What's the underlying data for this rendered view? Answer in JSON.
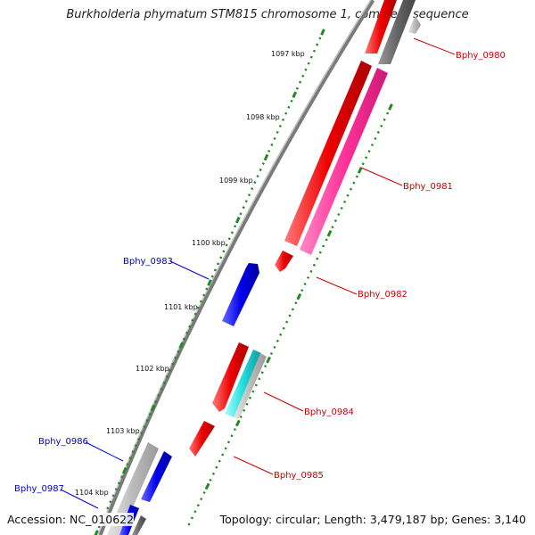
{
  "title": "Burkholderia phymatum STM815 chromosome 1, complete sequence",
  "accession": "Accession: NC_010622",
  "summary": "Topology: circular; Length: 3,479,187 bp; Genes: 3,140",
  "tick_labels": [
    "1097 kbp",
    "1098 kbp",
    "1099 kbp",
    "1100 kbp",
    "1101 kbp",
    "1102 kbp",
    "1103 kbp",
    "1104 kbp"
  ],
  "genes": [
    {
      "name": "Bphy_0980",
      "label_color": "#cc0000"
    },
    {
      "name": "Bphy_0981",
      "label_color": "#cc0000"
    },
    {
      "name": "Bphy_0982",
      "label_color": "#cc0000"
    },
    {
      "name": "Bphy_0983",
      "label_color": "#0000cc"
    },
    {
      "name": "Bphy_0984",
      "label_color": "#cc0000"
    },
    {
      "name": "Bphy_0985",
      "label_color": "#cc0000"
    },
    {
      "name": "Bphy_0986",
      "label_color": "#0000cc"
    },
    {
      "name": "Bphy_0987",
      "label_color": "#0000cc"
    }
  ],
  "colors": {
    "forward": "#ee0000",
    "reverse": "#0000ee",
    "pink": "#ff3399",
    "cyan": "#22dddd",
    "gray": "#666666",
    "lightgray": "#bbbbbb",
    "ticks": "#228822",
    "backbone": "#888888"
  }
}
